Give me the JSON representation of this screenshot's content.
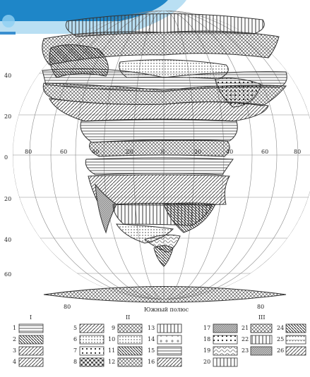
{
  "caption": "Южный полюс",
  "latitude_labels": [
    "40",
    "20",
    "0",
    "20",
    "40",
    "60"
  ],
  "equator_labels": [
    "80",
    "60",
    "40",
    "20",
    "0",
    "20",
    "40",
    "60",
    "80"
  ],
  "pole_labels": [
    "80",
    "80"
  ],
  "legend": {
    "groups": [
      "I",
      "II",
      "III"
    ],
    "items": [
      "1",
      "2",
      "3",
      "4",
      "5",
      "6",
      "7",
      "8",
      "9",
      "10",
      "11",
      "12",
      "13",
      "14",
      "15",
      "16",
      "17",
      "18",
      "19",
      "20",
      "21",
      "22",
      "23",
      "24",
      "25",
      "26"
    ]
  },
  "colors": {
    "banner": "#1e86c8",
    "banner_light": "#7fc4ea",
    "ink": "#333333",
    "grid": "#8a8a8a"
  }
}
